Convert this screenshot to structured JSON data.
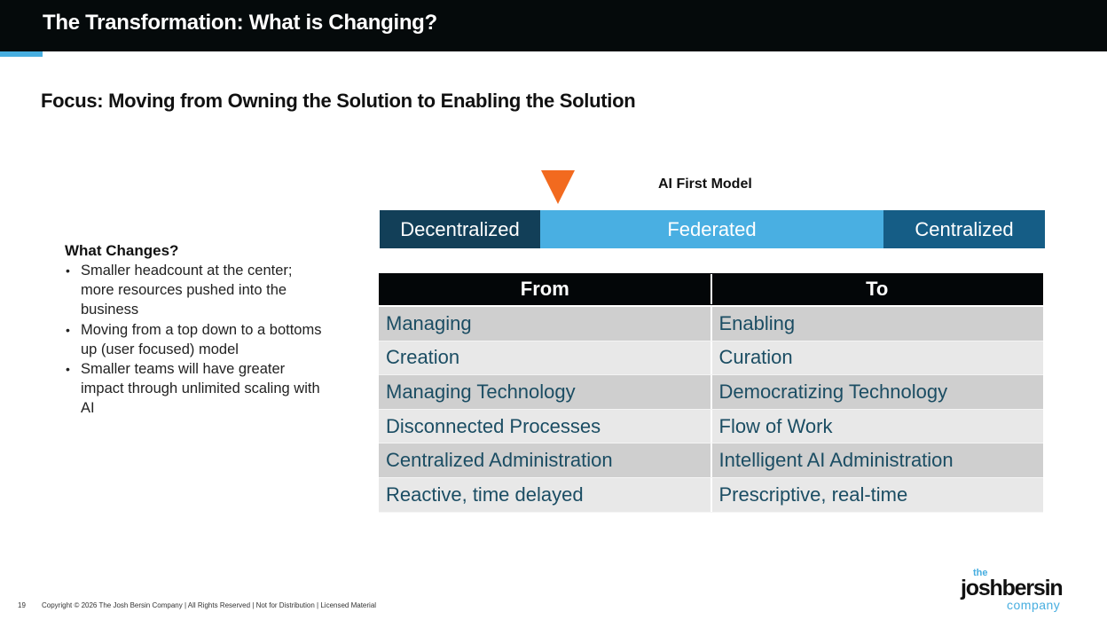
{
  "header": {
    "title": "The Transformation:  What is Changing?"
  },
  "subtitle": "Focus: Moving from Owning the Solution to Enabling the Solution",
  "left_panel": {
    "heading": "What Changes?",
    "bullet_glyph": "•",
    "bullets": [
      "Smaller headcount at the center; more resources pushed into the business",
      "Moving from a top down to a bottoms up (user focused) model",
      "Smaller teams will have greater impact through unlimited scaling with AI"
    ]
  },
  "model": {
    "label": "AI First Model",
    "marker_icon": "orange-down-triangle",
    "marker_color": "#f26a1f",
    "spectrum": [
      {
        "label": "Decentralized",
        "color": "#123f58"
      },
      {
        "label": "Federated",
        "color": "#49afe2"
      },
      {
        "label": "Centralized",
        "color": "#155d86"
      }
    ]
  },
  "table": {
    "headers": [
      "From",
      "To"
    ],
    "rows": [
      [
        "Managing",
        "Enabling"
      ],
      [
        "Creation",
        "Curation"
      ],
      [
        "Managing Technology",
        "Democratizing Technology"
      ],
      [
        "Disconnected Processes",
        "Flow of Work"
      ],
      [
        "Centralized Administration",
        "Intelligent AI Administration"
      ],
      [
        "Reactive, time delayed",
        "Prescriptive, real-time"
      ]
    ]
  },
  "footer": {
    "page_number": "19",
    "copyright": "Copyright © 2026 The Josh Bersin Company | All Rights Reserved | Not for Distribution  | Licensed Material"
  },
  "logo": {
    "the": "the",
    "main": "joshbersin",
    "company": "company"
  },
  "colors": {
    "header_bg": "#050a0b",
    "accent_blue": "#47aee0",
    "table_text": "#1b4d63"
  }
}
